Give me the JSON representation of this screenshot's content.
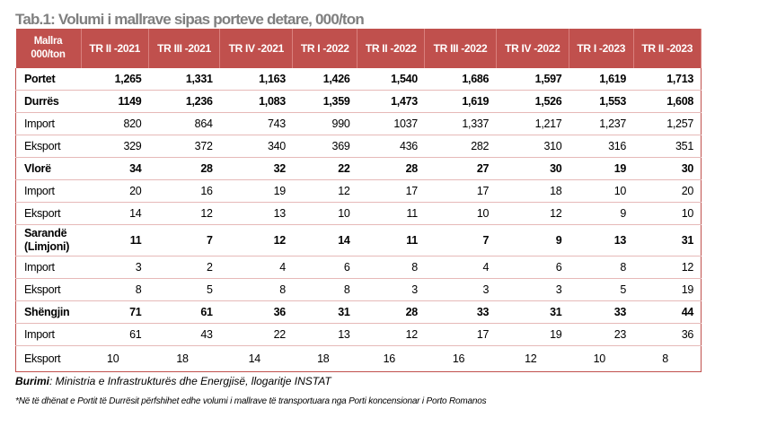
{
  "title": "Tab.1: Volumi i mallrave sipas porteve detare, 000/ton",
  "header": {
    "first": "Mallra 000/ton",
    "columns": [
      "TR II -2021",
      "TR III -2021",
      "TR IV -2021",
      "TR I -2022",
      "TR II -2022",
      "TR III -2022",
      "TR IV -2022",
      "TR I -2023",
      "TR II -2023"
    ]
  },
  "rows": [
    {
      "label": "Portet",
      "bold": true,
      "values": [
        "1,265",
        "1,331",
        "1,163",
        "1,426",
        "1,540",
        "1,686",
        "1,597",
        "1,619",
        "1,713"
      ]
    },
    {
      "label": "Durrës",
      "bold": true,
      "values": [
        "1149",
        "1,236",
        "1,083",
        "1,359",
        "1,473",
        "1,619",
        "1,526",
        "1,553",
        "1,608"
      ]
    },
    {
      "label": "Import",
      "bold": false,
      "values": [
        "820",
        "864",
        "743",
        "990",
        "1037",
        "1,337",
        "1,217",
        "1,237",
        "1,257"
      ]
    },
    {
      "label": "Eksport",
      "bold": false,
      "values": [
        "329",
        "372",
        "340",
        "369",
        "436",
        "282",
        "310",
        "316",
        "351"
      ]
    },
    {
      "label": "Vlorë",
      "bold": true,
      "values": [
        "34",
        "28",
        "32",
        "22",
        "28",
        "27",
        "30",
        "19",
        "30"
      ]
    },
    {
      "label": "Import",
      "bold": false,
      "values": [
        "20",
        "16",
        "19",
        "12",
        "17",
        "17",
        "18",
        "10",
        "20"
      ]
    },
    {
      "label": "Eksport",
      "bold": false,
      "values": [
        "14",
        "12",
        "13",
        "10",
        "11",
        "10",
        "12",
        "9",
        "10"
      ]
    },
    {
      "label": "Sarandë (Limjoni)",
      "bold": true,
      "values": [
        "11",
        "7",
        "12",
        "14",
        "11",
        "7",
        "9",
        "13",
        "31"
      ]
    },
    {
      "label": "Import",
      "bold": false,
      "values": [
        "3",
        "2",
        "4",
        "6",
        "8",
        "4",
        "6",
        "8",
        "12"
      ]
    },
    {
      "label": "Eksport",
      "bold": false,
      "values": [
        "8",
        "5",
        "8",
        "8",
        "3",
        "3",
        "3",
        "5",
        "19"
      ]
    },
    {
      "label": "Shëngjin",
      "bold": true,
      "values": [
        "71",
        "61",
        "36",
        "31",
        "28",
        "33",
        "31",
        "33",
        "44"
      ]
    },
    {
      "label": "Import",
      "bold": false,
      "values": [
        "61",
        "43",
        "22",
        "13",
        "12",
        "17",
        "19",
        "23",
        "36"
      ]
    },
    {
      "label": "Eksport",
      "bold": false,
      "values": [
        "10",
        "18",
        "14",
        "18",
        "16",
        "16",
        "12",
        "10",
        "8"
      ]
    }
  ],
  "source": {
    "label": "Burimi",
    "text": ": Ministria e Infrastrukturës dhe Energjisë, llogaritje INSTAT"
  },
  "note": "*Në të dhënat e Portit të Durrësit përfshihet edhe volumi i mallrave të transportuara nga Porti koncensionar i Porto Romanos"
}
